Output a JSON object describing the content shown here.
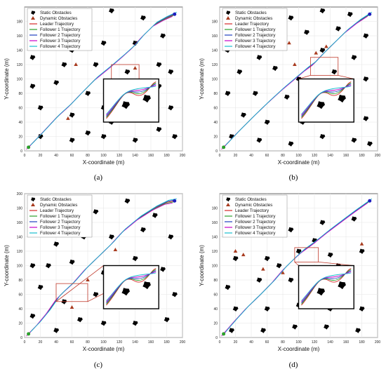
{
  "chart_data": [
    {
      "type": "line",
      "caption": "(a)",
      "xlabel": "X-coordinate (m)",
      "ylabel": "Y-coordinate (m)",
      "xlim": [
        0,
        200
      ],
      "ylim": [
        0,
        200
      ],
      "xticks": [
        0,
        20,
        40,
        60,
        80,
        100,
        120,
        140,
        160,
        180,
        200
      ],
      "yticks": [
        0,
        20,
        40,
        60,
        80,
        100,
        120,
        140,
        160,
        180
      ],
      "legend": [
        "Static Obstacles",
        "Dynamic Obstacles",
        "Leader Trajectory",
        "Follower 1 Trajectory",
        "Follower 2 Trajectory",
        "Follower 3 Trajectory",
        "Follower 4 Trajectory"
      ],
      "legend_position": "top-left",
      "start": [
        5,
        5
      ],
      "goal": [
        190,
        190
      ],
      "path": [
        [
          5,
          5
        ],
        [
          20,
          22
        ],
        [
          42,
          48
        ],
        [
          58,
          64
        ],
        [
          72,
          80
        ],
        [
          90,
          100
        ],
        [
          110,
          118
        ],
        [
          125,
          132
        ],
        [
          138,
          145
        ],
        [
          150,
          160
        ],
        [
          165,
          176
        ],
        [
          178,
          184
        ],
        [
          190,
          190
        ]
      ],
      "static_obstacles": [
        [
          15,
          180
        ],
        [
          35,
          185
        ],
        [
          55,
          175
        ],
        [
          80,
          190
        ],
        [
          110,
          195
        ],
        [
          150,
          185
        ],
        [
          175,
          160
        ],
        [
          30,
          150
        ],
        [
          60,
          140
        ],
        [
          100,
          150
        ],
        [
          140,
          150
        ],
        [
          170,
          120
        ],
        [
          10,
          130
        ],
        [
          50,
          120
        ],
        [
          90,
          120
        ],
        [
          130,
          110
        ],
        [
          10,
          90
        ],
        [
          40,
          95
        ],
        [
          80,
          80
        ],
        [
          170,
          90
        ],
        [
          20,
          60
        ],
        [
          60,
          50
        ],
        [
          100,
          60
        ],
        [
          150,
          60
        ],
        [
          185,
          60
        ],
        [
          20,
          20
        ],
        [
          60,
          15
        ],
        [
          100,
          20
        ],
        [
          140,
          15
        ],
        [
          170,
          30
        ],
        [
          125,
          75
        ],
        [
          185,
          110
        ],
        [
          190,
          20
        ],
        [
          80,
          25
        ],
        [
          110,
          40
        ]
      ],
      "dynamic_obstacles": [
        [
          65,
          120
        ],
        [
          145,
          50
        ],
        [
          55,
          45
        ],
        [
          140,
          115
        ]
      ],
      "inset": {
        "x": [
          110,
          145
        ],
        "y": [
          100,
          120
        ]
      }
    },
    {
      "type": "line",
      "caption": "(b)",
      "xlabel": "X-coordinate (m)",
      "ylabel": "Y-coordinate (m)",
      "xlim": [
        0,
        200
      ],
      "ylim": [
        0,
        200
      ],
      "xticks": [
        0,
        20,
        40,
        60,
        80,
        100,
        120,
        140,
        160,
        180,
        200
      ],
      "yticks": [
        0,
        20,
        40,
        60,
        80,
        100,
        120,
        140,
        160,
        180
      ],
      "legend": [
        "Static Obstacles",
        "Dynamic Obstacles",
        "Leader Trajectory",
        "Follower 1 Trajectory",
        "Follower 2 Trajectory",
        "Follower 3 Trajectory",
        "Follower 4 Trajectory"
      ],
      "legend_position": "top-left",
      "start": [
        5,
        5
      ],
      "goal": [
        190,
        190
      ],
      "path": [
        [
          5,
          5
        ],
        [
          25,
          28
        ],
        [
          45,
          50
        ],
        [
          62,
          68
        ],
        [
          80,
          86
        ],
        [
          95,
          100
        ],
        [
          110,
          114
        ],
        [
          120,
          122
        ],
        [
          132,
          136
        ],
        [
          145,
          150
        ],
        [
          160,
          166
        ],
        [
          176,
          180
        ],
        [
          190,
          190
        ]
      ],
      "static_obstacles": [
        [
          20,
          190
        ],
        [
          60,
          195
        ],
        [
          90,
          185
        ],
        [
          130,
          195
        ],
        [
          165,
          190
        ],
        [
          40,
          160
        ],
        [
          80,
          170
        ],
        [
          110,
          165
        ],
        [
          150,
          170
        ],
        [
          185,
          160
        ],
        [
          10,
          140
        ],
        [
          50,
          130
        ],
        [
          130,
          140
        ],
        [
          170,
          130
        ],
        [
          25,
          110
        ],
        [
          70,
          115
        ],
        [
          100,
          100
        ],
        [
          145,
          110
        ],
        [
          185,
          100
        ],
        [
          10,
          80
        ],
        [
          45,
          80
        ],
        [
          85,
          75
        ],
        [
          130,
          80
        ],
        [
          165,
          70
        ],
        [
          30,
          50
        ],
        [
          60,
          40
        ],
        [
          105,
          40
        ],
        [
          140,
          50
        ],
        [
          185,
          45
        ],
        [
          15,
          20
        ],
        [
          50,
          15
        ],
        [
          90,
          10
        ],
        [
          130,
          20
        ],
        [
          170,
          15
        ],
        [
          190,
          10
        ]
      ],
      "dynamic_obstacles": [
        [
          88,
          150
        ],
        [
          122,
          136
        ],
        [
          95,
          120
        ],
        [
          135,
          145
        ]
      ],
      "inset": {
        "x": [
          115,
          150
        ],
        "y": [
          105,
          130
        ]
      }
    },
    {
      "type": "line",
      "caption": "(c)",
      "xlabel": "X-coordinate (m)",
      "ylabel": "Y-coordinate (m)",
      "xlim": [
        0,
        200
      ],
      "ylim": [
        0,
        200
      ],
      "xticks": [
        0,
        20,
        40,
        60,
        80,
        100,
        120,
        140,
        160,
        180,
        200
      ],
      "yticks": [
        0,
        20,
        40,
        60,
        80,
        100,
        120,
        140,
        160,
        180,
        200
      ],
      "legend": [
        "Static Obstacles",
        "Dynamic Obstacles",
        "Leader Trajectory",
        "Follower 1 Trajectory",
        "Follower 2 Trajectory",
        "Follower 3 Trajectory",
        "Follower 4 Trajectory"
      ],
      "legend_position": "top-left",
      "start": [
        5,
        5
      ],
      "goal": [
        190,
        190
      ],
      "path": [
        [
          5,
          5
        ],
        [
          18,
          20
        ],
        [
          30,
          36
        ],
        [
          42,
          55
        ],
        [
          50,
          64
        ],
        [
          62,
          76
        ],
        [
          78,
          96
        ],
        [
          95,
          114
        ],
        [
          110,
          130
        ],
        [
          125,
          148
        ],
        [
          145,
          166
        ],
        [
          165,
          180
        ],
        [
          180,
          188
        ],
        [
          190,
          190
        ]
      ],
      "static_obstacles": [
        [
          20,
          170
        ],
        [
          55,
          185
        ],
        [
          90,
          175
        ],
        [
          130,
          190
        ],
        [
          165,
          170
        ],
        [
          40,
          130
        ],
        [
          75,
          140
        ],
        [
          110,
          140
        ],
        [
          150,
          150
        ],
        [
          185,
          140
        ],
        [
          10,
          100
        ],
        [
          60,
          105
        ],
        [
          100,
          90
        ],
        [
          140,
          110
        ],
        [
          175,
          95
        ],
        [
          20,
          70
        ],
        [
          50,
          50
        ],
        [
          90,
          60
        ],
        [
          130,
          60
        ],
        [
          165,
          45
        ],
        [
          10,
          30
        ],
        [
          40,
          10
        ],
        [
          70,
          25
        ],
        [
          100,
          20
        ],
        [
          140,
          20
        ],
        [
          180,
          25
        ],
        [
          190,
          60
        ],
        [
          115,
          45
        ],
        [
          150,
          80
        ],
        [
          30,
          100
        ]
      ],
      "dynamic_obstacles": [
        [
          115,
          122
        ],
        [
          80,
          80
        ],
        [
          60,
          42
        ]
      ],
      "inset": {
        "x": [
          40,
          80
        ],
        "y": [
          50,
          75
        ]
      }
    },
    {
      "type": "line",
      "caption": "(d)",
      "xlabel": "X-coordinate (m)",
      "ylabel": "Y-coordinate (m)",
      "xlim": [
        0,
        200
      ],
      "ylim": [
        0,
        200
      ],
      "xticks": [
        0,
        20,
        40,
        60,
        80,
        100,
        120,
        140,
        160,
        180,
        200
      ],
      "yticks": [
        0,
        20,
        40,
        60,
        80,
        100,
        120,
        140,
        160,
        180
      ],
      "legend": [
        "Static Obstacles",
        "Dynamic Obstacles",
        "Leader Trajectory",
        "Follower 1 Trajectory",
        "Follower 2 Trajectory",
        "Follower 3 Trajectory",
        "Follower 4 Trajectory"
      ],
      "legend_position": "top-left",
      "start": [
        5,
        5
      ],
      "goal": [
        190,
        190
      ],
      "path": [
        [
          5,
          5
        ],
        [
          20,
          24
        ],
        [
          35,
          42
        ],
        [
          52,
          60
        ],
        [
          68,
          78
        ],
        [
          82,
          96
        ],
        [
          95,
          110
        ],
        [
          105,
          120
        ],
        [
          120,
          132
        ],
        [
          138,
          148
        ],
        [
          155,
          162
        ],
        [
          172,
          176
        ],
        [
          190,
          190
        ]
      ],
      "static_obstacles": [
        [
          50,
          155
        ],
        [
          90,
          150
        ],
        [
          130,
          160
        ],
        [
          170,
          165
        ],
        [
          20,
          110
        ],
        [
          60,
          110
        ],
        [
          100,
          120
        ],
        [
          140,
          115
        ],
        [
          180,
          120
        ],
        [
          10,
          70
        ],
        [
          50,
          80
        ],
        [
          90,
          80
        ],
        [
          130,
          70
        ],
        [
          165,
          75
        ],
        [
          20,
          40
        ],
        [
          60,
          40
        ],
        [
          100,
          45
        ],
        [
          140,
          40
        ],
        [
          180,
          40
        ],
        [
          15,
          10
        ],
        [
          55,
          10
        ],
        [
          95,
          15
        ],
        [
          135,
          15
        ],
        [
          175,
          10
        ],
        [
          120,
          135
        ],
        [
          150,
          100
        ],
        [
          75,
          100
        ],
        [
          110,
          90
        ]
      ],
      "dynamic_obstacles": [
        [
          20,
          120
        ],
        [
          80,
          90
        ],
        [
          55,
          95
        ],
        [
          180,
          130
        ],
        [
          30,
          115
        ]
      ],
      "inset": {
        "x": [
          95,
          125
        ],
        "y": [
          105,
          125
        ]
      }
    }
  ]
}
